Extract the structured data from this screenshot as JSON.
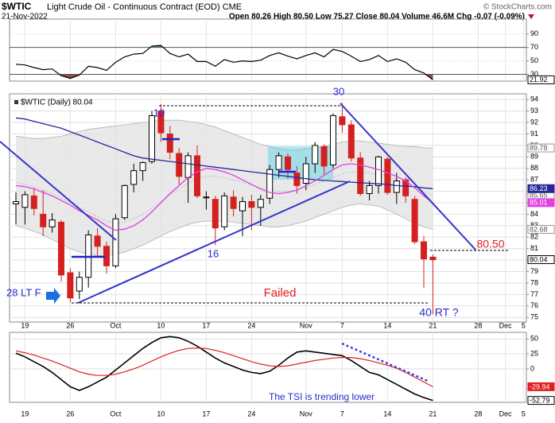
{
  "header": {
    "symbol": "$WTIC",
    "name": "Light Crude Oil - Continuous Contract (EOD) CME",
    "credit": "© StockCharts.com",
    "date": "21-Nov-2022",
    "quote": "Open 80.26  High 80.50  Low 75.27  Close 80.04  Volume 46.6M  Chg -0.07 (-0.09%)"
  },
  "chart_data": [
    {
      "type": "line",
      "ylim": [
        20,
        112
      ],
      "yticks": [
        90,
        70,
        50,
        30
      ],
      "grid": true,
      "overbought": 70,
      "oversold": 30,
      "series": [
        {
          "color": "#000000",
          "values": [
            45,
            44,
            40,
            37,
            38,
            28,
            24,
            29,
            42,
            40,
            36,
            48,
            56,
            60,
            61,
            72,
            73,
            61,
            56,
            60,
            49,
            49,
            42,
            52,
            48,
            50,
            49,
            51,
            58,
            62,
            57,
            53,
            58,
            62,
            56,
            67,
            64,
            57,
            49,
            52,
            58,
            49,
            53,
            48,
            37,
            32,
            21.92,
            null,
            null,
            null,
            null,
            null,
            null,
            null,
            null,
            null,
            null
          ]
        }
      ]
    },
    {
      "type": "candlestick",
      "legend_label": "$WTIC (Daily) 80.04",
      "ylim": [
        74.6,
        94.5
      ],
      "yticks": [
        75,
        76,
        77,
        78,
        79,
        80,
        81,
        82,
        83,
        84,
        85,
        86,
        87,
        88,
        89,
        90,
        91,
        92,
        93,
        94
      ],
      "grid": true,
      "categories": [
        null,
        "19",
        null,
        null,
        null,
        null,
        "26",
        null,
        null,
        null,
        null,
        "Oct",
        null,
        null,
        null,
        null,
        "10",
        null,
        null,
        null,
        null,
        "17",
        null,
        null,
        null,
        null,
        "24",
        null,
        null,
        null,
        null,
        null,
        "Nov",
        null,
        null,
        null,
        "7",
        null,
        null,
        null,
        null,
        "14",
        null,
        null,
        null,
        null,
        "21",
        null,
        null,
        null,
        null,
        "28",
        null,
        null,
        "Dec",
        null,
        "5"
      ],
      "ohlc": {
        "open": [
          84.9,
          84.6,
          85.6,
          84.0,
          82.9,
          83.3,
          78.9,
          77.3,
          78.5,
          82.1,
          81.2,
          79.5,
          83.7,
          86.6,
          87.8,
          88.6,
          93.0,
          91.0,
          89.3,
          87.2,
          89.1,
          85.5,
          85.3,
          82.9,
          85.5,
          84.3,
          85.1,
          84.6,
          85.4,
          87.9,
          89.0,
          87.6,
          86.7,
          88.4,
          89.9,
          88.3,
          92.5,
          91.8,
          88.9,
          85.8,
          86.5,
          88.8,
          85.9,
          87.0,
          85.3,
          81.6,
          80.26,
          null,
          null,
          null,
          null,
          null,
          null,
          null,
          null,
          null,
          null
        ],
        "high": [
          85.9,
          86.0,
          86.3,
          86.1,
          84.1,
          83.5,
          79.3,
          79.0,
          82.6,
          82.8,
          81.6,
          84.0,
          86.6,
          88.4,
          88.6,
          93.0,
          93.6,
          91.7,
          89.8,
          89.4,
          90.0,
          86.0,
          85.6,
          85.9,
          86.1,
          85.5,
          85.7,
          85.7,
          88.3,
          89.4,
          89.3,
          88.2,
          89.0,
          90.3,
          90.1,
          92.8,
          93.7,
          92.2,
          89.4,
          86.9,
          89.1,
          89.0,
          87.6,
          87.2,
          85.6,
          82.1,
          80.5,
          null,
          null,
          null,
          null,
          null,
          null,
          null,
          null,
          null,
          null
        ],
        "low": [
          83.1,
          83.1,
          83.9,
          82.1,
          82.4,
          78.1,
          76.3,
          76.6,
          77.6,
          80.4,
          78.8,
          79.3,
          83.5,
          85.9,
          86.9,
          88.4,
          90.3,
          88.8,
          86.6,
          85.0,
          85.4,
          84.4,
          81.3,
          82.6,
          83.8,
          82.1,
          82.6,
          83.0,
          84.9,
          87.2,
          87.1,
          85.8,
          86.1,
          87.6,
          87.5,
          88.0,
          91.1,
          88.6,
          85.6,
          85.2,
          85.8,
          85.7,
          84.9,
          85.0,
          81.4,
          77.6,
          75.27,
          null,
          null,
          null,
          null,
          null,
          null,
          null,
          null,
          null,
          null
        ],
        "close": [
          85.1,
          85.7,
          84.5,
          82.9,
          83.5,
          78.7,
          76.7,
          78.5,
          82.2,
          81.2,
          79.5,
          83.6,
          86.5,
          87.8,
          88.5,
          92.6,
          91.1,
          89.4,
          87.3,
          89.1,
          85.6,
          85.5,
          82.8,
          85.6,
          84.5,
          85.1,
          84.6,
          85.3,
          87.9,
          89.1,
          87.9,
          86.5,
          88.4,
          90.0,
          88.2,
          92.6,
          91.8,
          88.9,
          85.8,
          86.5,
          89.0,
          85.9,
          86.9,
          85.6,
          81.6,
          80.1,
          80.04,
          null,
          null,
          null,
          null,
          null,
          null,
          null,
          null,
          null,
          null
        ]
      },
      "band": {
        "color": "#e4e4e4",
        "line_color": "#b0b0b0",
        "upper": [
          90.8,
          90.7,
          90.6,
          90.6,
          90.7,
          90.8,
          91.0,
          91.2,
          91.4,
          91.5,
          91.6,
          91.7,
          91.8,
          91.9,
          92.0,
          92.1,
          92.2,
          92.2,
          92.2,
          92.1,
          92.0,
          91.8,
          91.6,
          91.3,
          91.0,
          90.7,
          90.4,
          90.1,
          89.9,
          89.7,
          89.6,
          89.6,
          89.7,
          89.8,
          89.9,
          90.1,
          90.3,
          90.4,
          90.4,
          90.3,
          90.2,
          90.1,
          90.0,
          89.9,
          89.9,
          89.8,
          89.78,
          null,
          null,
          null,
          null,
          null,
          null,
          null,
          null,
          null,
          null
        ],
        "middle": [
          86.8,
          86.6,
          86.4,
          86.1,
          85.8,
          85.4,
          85.0,
          84.6,
          84.2,
          83.8,
          83.4,
          83.2,
          83.3,
          83.6,
          84.0,
          84.5,
          85.1,
          85.7,
          86.2,
          86.7,
          87.1,
          87.3,
          87.3,
          87.2,
          87.0,
          86.8,
          86.5,
          86.3,
          86.1,
          86.0,
          86.0,
          86.1,
          86.3,
          86.6,
          86.9,
          87.2,
          87.5,
          87.7,
          87.7,
          87.6,
          87.5,
          87.3,
          87.0,
          86.7,
          86.4,
          86.0,
          85.65,
          null,
          null,
          null,
          null,
          null,
          null,
          null,
          null,
          null,
          null
        ],
        "lower": [
          83.0,
          82.8,
          82.5,
          82.2,
          81.8,
          81.4,
          81.0,
          80.7,
          80.5,
          80.4,
          80.4,
          80.5,
          80.7,
          81.0,
          81.3,
          81.7,
          82.1,
          82.5,
          82.8,
          83.1,
          83.3,
          83.4,
          83.4,
          83.4,
          83.3,
          83.2,
          83.1,
          83.0,
          82.9,
          82.9,
          83.0,
          83.2,
          83.4,
          83.7,
          84.0,
          84.3,
          84.6,
          84.8,
          84.9,
          84.8,
          84.7,
          84.4,
          84.0,
          83.6,
          83.2,
          82.9,
          82.68,
          null,
          null,
          null,
          null,
          null,
          null,
          null,
          null,
          null,
          null
        ]
      },
      "series": [
        {
          "color": "#27279a",
          "values": [
            92.4,
            92.3,
            92.1,
            91.9,
            91.7,
            91.5,
            91.2,
            90.9,
            90.6,
            90.3,
            90.0,
            89.7,
            89.4,
            89.1,
            88.9,
            88.8,
            88.7,
            88.6,
            88.5,
            88.4,
            88.3,
            88.2,
            88.1,
            88.0,
            87.9,
            87.8,
            87.7,
            87.6,
            87.5,
            87.4,
            87.3,
            87.2,
            87.1,
            87.0,
            86.95,
            86.9,
            86.85,
            86.8,
            86.75,
            86.7,
            86.65,
            86.6,
            86.5,
            86.45,
            86.4,
            86.3,
            86.23,
            null,
            null,
            null,
            null,
            null,
            null,
            null,
            null,
            null,
            null
          ]
        },
        {
          "color": "#e040e0",
          "values": [
            86.5,
            86.4,
            86.2,
            85.9,
            85.6,
            85.2,
            84.8,
            84.3,
            83.9,
            83.5,
            83.0,
            82.6,
            82.7,
            83.0,
            83.5,
            84.2,
            85.0,
            85.8,
            86.5,
            87.2,
            87.7,
            88.0,
            87.9,
            87.7,
            87.4,
            87.0,
            86.6,
            86.2,
            85.9,
            85.8,
            85.9,
            86.1,
            86.5,
            86.9,
            87.4,
            87.9,
            88.3,
            88.4,
            88.3,
            88.1,
            87.9,
            87.6,
            87.3,
            86.9,
            86.3,
            85.6,
            85.01,
            null,
            null,
            null,
            null,
            null,
            null,
            null,
            null,
            null,
            null
          ]
        }
      ],
      "annotations": [
        "10",
        "30",
        "16",
        "28 LT F",
        "Failed",
        "40 RT ?",
        "80.50"
      ]
    },
    {
      "type": "line",
      "ylim": [
        -56,
        61
      ],
      "yticks": [
        50,
        25,
        0
      ],
      "grid": true,
      "series": [
        {
          "color": "#000000",
          "values": [
            26,
            20,
            12,
            4,
            -6,
            -18,
            -30,
            -36,
            -30,
            -22,
            -14,
            -2,
            10,
            22,
            34,
            44,
            52,
            54,
            52,
            46,
            38,
            28,
            18,
            10,
            4,
            -2,
            -6,
            -8,
            -4,
            6,
            18,
            28,
            30,
            28,
            26,
            24,
            22,
            14,
            4,
            -6,
            -10,
            -18,
            -26,
            -34,
            -42,
            -48,
            -52.79,
            null,
            null,
            null,
            null,
            null,
            null,
            null,
            null,
            null,
            null
          ]
        },
        {
          "color": "#e02020",
          "values": [
            30,
            27,
            23,
            18,
            13,
            7,
            1,
            -5,
            -9,
            -11,
            -11,
            -9,
            -5,
            0,
            6,
            13,
            20,
            26,
            31,
            34,
            35,
            34,
            31,
            27,
            22,
            17,
            12,
            8,
            5,
            4,
            5,
            8,
            11,
            14,
            16,
            18,
            19,
            19,
            17,
            14,
            10,
            6,
            1,
            -6,
            -14,
            -22,
            -29.94,
            null,
            null,
            null,
            null,
            null,
            null,
            null,
            null,
            null,
            null
          ]
        }
      ],
      "annotations": [
        "The TSI is trending lower"
      ]
    }
  ]
}
